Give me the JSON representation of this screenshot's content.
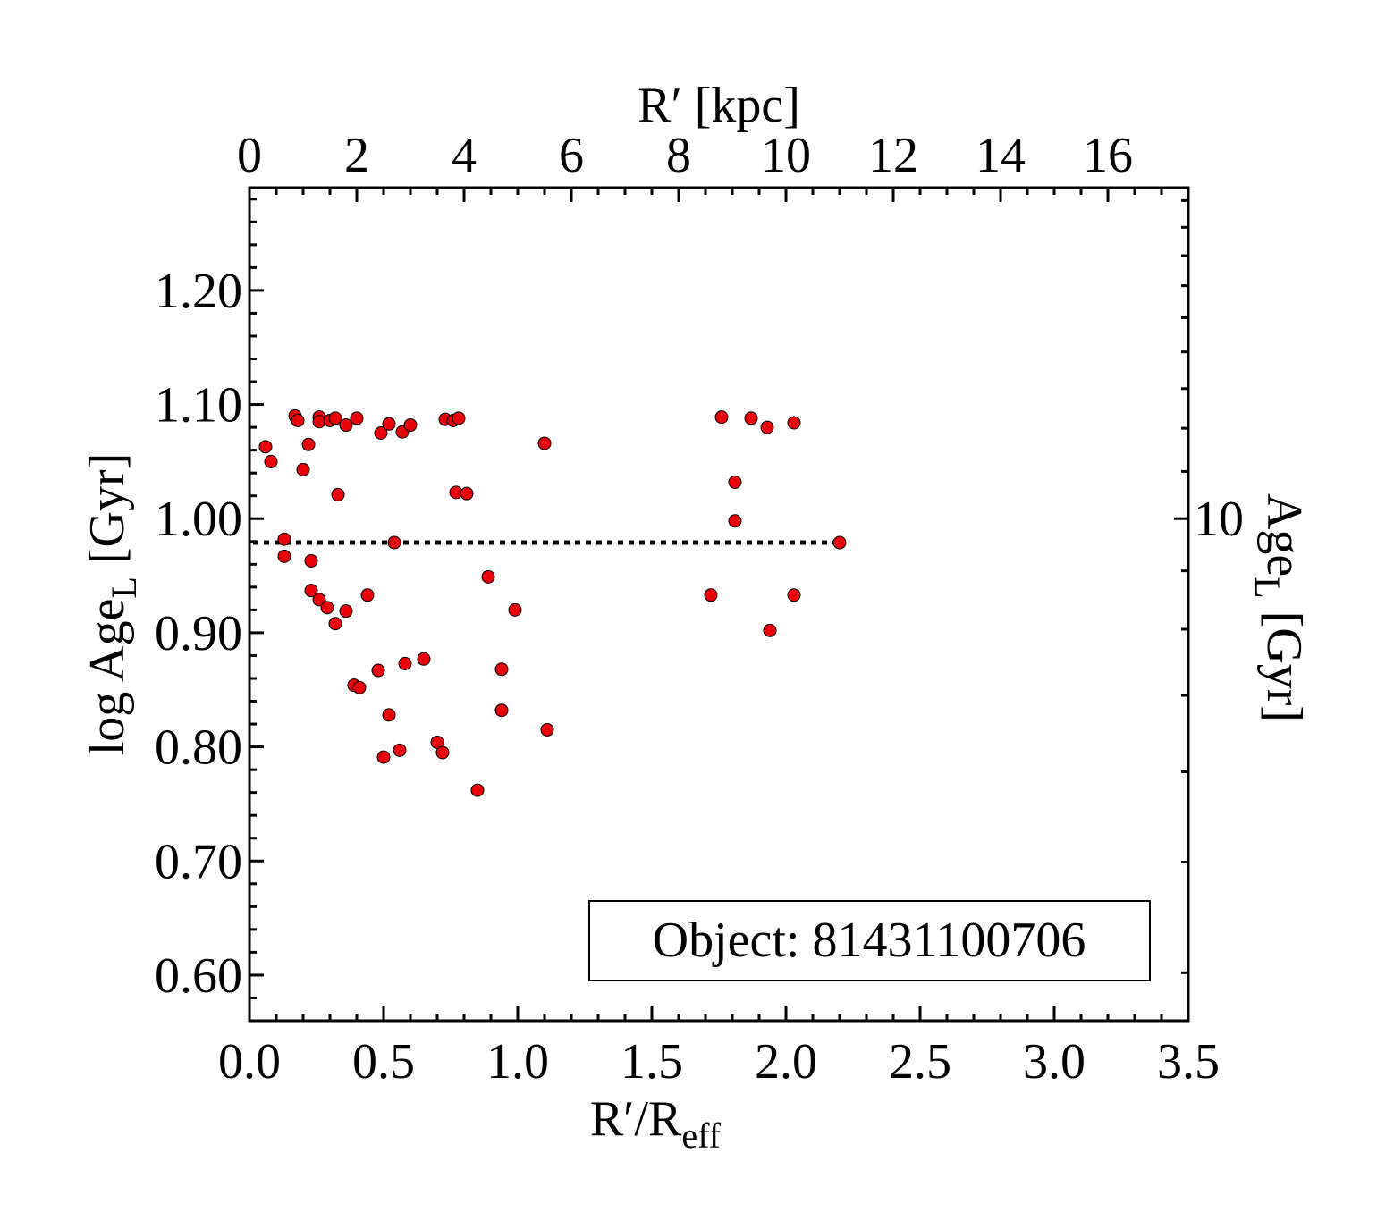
{
  "chart_data": {
    "type": "scatter",
    "title": "",
    "xlabel": "R′/R",
    "xlabel_sub": "eff",
    "ylabel": "log Age",
    "ylabel_sub": "L",
    "ylabel_unit": "[Gyr]",
    "top_xlabel": "R′ [kpc]",
    "right_ylabel": "Age",
    "right_ylabel_sub": "L",
    "right_ylabel_unit": "[Gyr]",
    "xlim": [
      0.0,
      3.5
    ],
    "ylim": [
      0.56,
      1.29
    ],
    "top_xlim": [
      0,
      17.5
    ],
    "x_ticks": [
      "0.0",
      "0.5",
      "1.0",
      "1.5",
      "2.0",
      "2.5",
      "3.0",
      "3.5"
    ],
    "x_tick_values": [
      0.0,
      0.5,
      1.0,
      1.5,
      2.0,
      2.5,
      3.0,
      3.5
    ],
    "y_ticks": [
      "0.60",
      "0.70",
      "0.80",
      "0.90",
      "1.00",
      "1.10",
      "1.20"
    ],
    "y_tick_values": [
      0.6,
      0.7,
      0.8,
      0.9,
      1.0,
      1.1,
      1.2
    ],
    "top_ticks": [
      "0",
      "2",
      "4",
      "6",
      "8",
      "10",
      "12",
      "14",
      "16"
    ],
    "top_tick_values": [
      0,
      2,
      4,
      6,
      8,
      10,
      12,
      14,
      16
    ],
    "right_ticks": [
      "10"
    ],
    "right_tick_values": [
      10
    ],
    "grid": false,
    "legend": "none",
    "annotation": "Object: 81431100706",
    "marker_color": "#e8000b",
    "marker_edge": "#000000",
    "mean_line": {
      "value": 0.979,
      "x_range": [
        0.0,
        2.22
      ],
      "style": "dotted"
    },
    "series": [
      {
        "points": [
          [
            0.06,
            1.063
          ],
          [
            0.08,
            1.05
          ],
          [
            0.13,
            0.982
          ],
          [
            0.13,
            0.967
          ],
          [
            0.17,
            1.09
          ],
          [
            0.18,
            1.086
          ],
          [
            0.2,
            1.043
          ],
          [
            0.22,
            1.065
          ],
          [
            0.23,
            0.963
          ],
          [
            0.23,
            0.937
          ],
          [
            0.26,
            1.089
          ],
          [
            0.26,
            1.085
          ],
          [
            0.26,
            0.929
          ],
          [
            0.29,
            0.922
          ],
          [
            0.3,
            1.086
          ],
          [
            0.32,
            1.088
          ],
          [
            0.32,
            0.908
          ],
          [
            0.33,
            1.021
          ],
          [
            0.36,
            1.082
          ],
          [
            0.36,
            0.919
          ],
          [
            0.39,
            0.854
          ],
          [
            0.4,
            1.088
          ],
          [
            0.41,
            0.852
          ],
          [
            0.44,
            0.933
          ],
          [
            0.48,
            0.867
          ],
          [
            0.49,
            1.075
          ],
          [
            0.5,
            0.791
          ],
          [
            0.52,
            1.083
          ],
          [
            0.52,
            0.828
          ],
          [
            0.54,
            0.979
          ],
          [
            0.56,
            0.797
          ],
          [
            0.57,
            1.076
          ],
          [
            0.58,
            0.873
          ],
          [
            0.6,
            1.082
          ],
          [
            0.65,
            0.877
          ],
          [
            0.7,
            0.804
          ],
          [
            0.72,
            0.795
          ],
          [
            0.73,
            1.087
          ],
          [
            0.76,
            1.086
          ],
          [
            0.77,
            1.023
          ],
          [
            0.78,
            1.088
          ],
          [
            0.81,
            1.022
          ],
          [
            0.85,
            0.762
          ],
          [
            0.89,
            0.949
          ],
          [
            0.94,
            0.868
          ],
          [
            0.94,
            0.832
          ],
          [
            0.99,
            0.92
          ],
          [
            1.1,
            1.066
          ],
          [
            1.11,
            0.815
          ],
          [
            1.72,
            0.933
          ],
          [
            1.76,
            1.089
          ],
          [
            1.81,
            1.032
          ],
          [
            1.81,
            0.998
          ],
          [
            1.87,
            1.088
          ],
          [
            1.93,
            1.08
          ],
          [
            1.94,
            0.902
          ],
          [
            2.03,
            1.084
          ],
          [
            2.03,
            0.933
          ],
          [
            2.2,
            0.979
          ]
        ]
      }
    ]
  }
}
